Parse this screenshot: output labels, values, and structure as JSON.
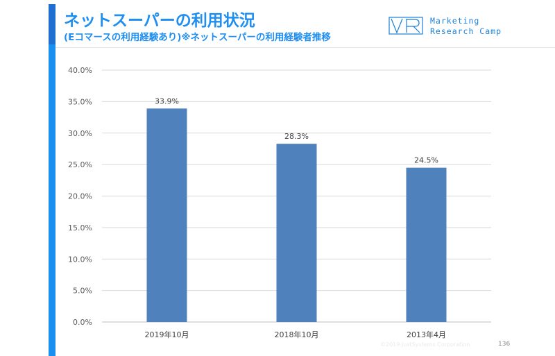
{
  "header": {
    "title": "ネットスーパーの利用状況",
    "subtitle": "(Eコマースの利用経験あり)※ネットスーパーの利用経験者推移"
  },
  "logo": {
    "line1": "Marketing",
    "line2": "Research Camp",
    "color": "#1a7fd6"
  },
  "footer": {
    "copyright": "©2019 JustSystems Corporation",
    "page_number": "136"
  },
  "colors": {
    "bar": "#4f81bd",
    "accent": "#1f8ef1",
    "grid": "#d9d9d9"
  },
  "chart_data": {
    "type": "bar",
    "categories": [
      "2019年10月",
      "2018年10月",
      "2013年4月"
    ],
    "values": [
      33.9,
      28.3,
      24.5
    ],
    "data_labels": [
      "33.9%",
      "28.3%",
      "24.5%"
    ],
    "yticks": [
      "0.0%",
      "5.0%",
      "10.0%",
      "15.0%",
      "20.0%",
      "25.0%",
      "30.0%",
      "35.0%",
      "40.0%"
    ],
    "ylim": [
      0,
      40
    ],
    "ystep": 5,
    "grid": true,
    "legend": "none"
  }
}
